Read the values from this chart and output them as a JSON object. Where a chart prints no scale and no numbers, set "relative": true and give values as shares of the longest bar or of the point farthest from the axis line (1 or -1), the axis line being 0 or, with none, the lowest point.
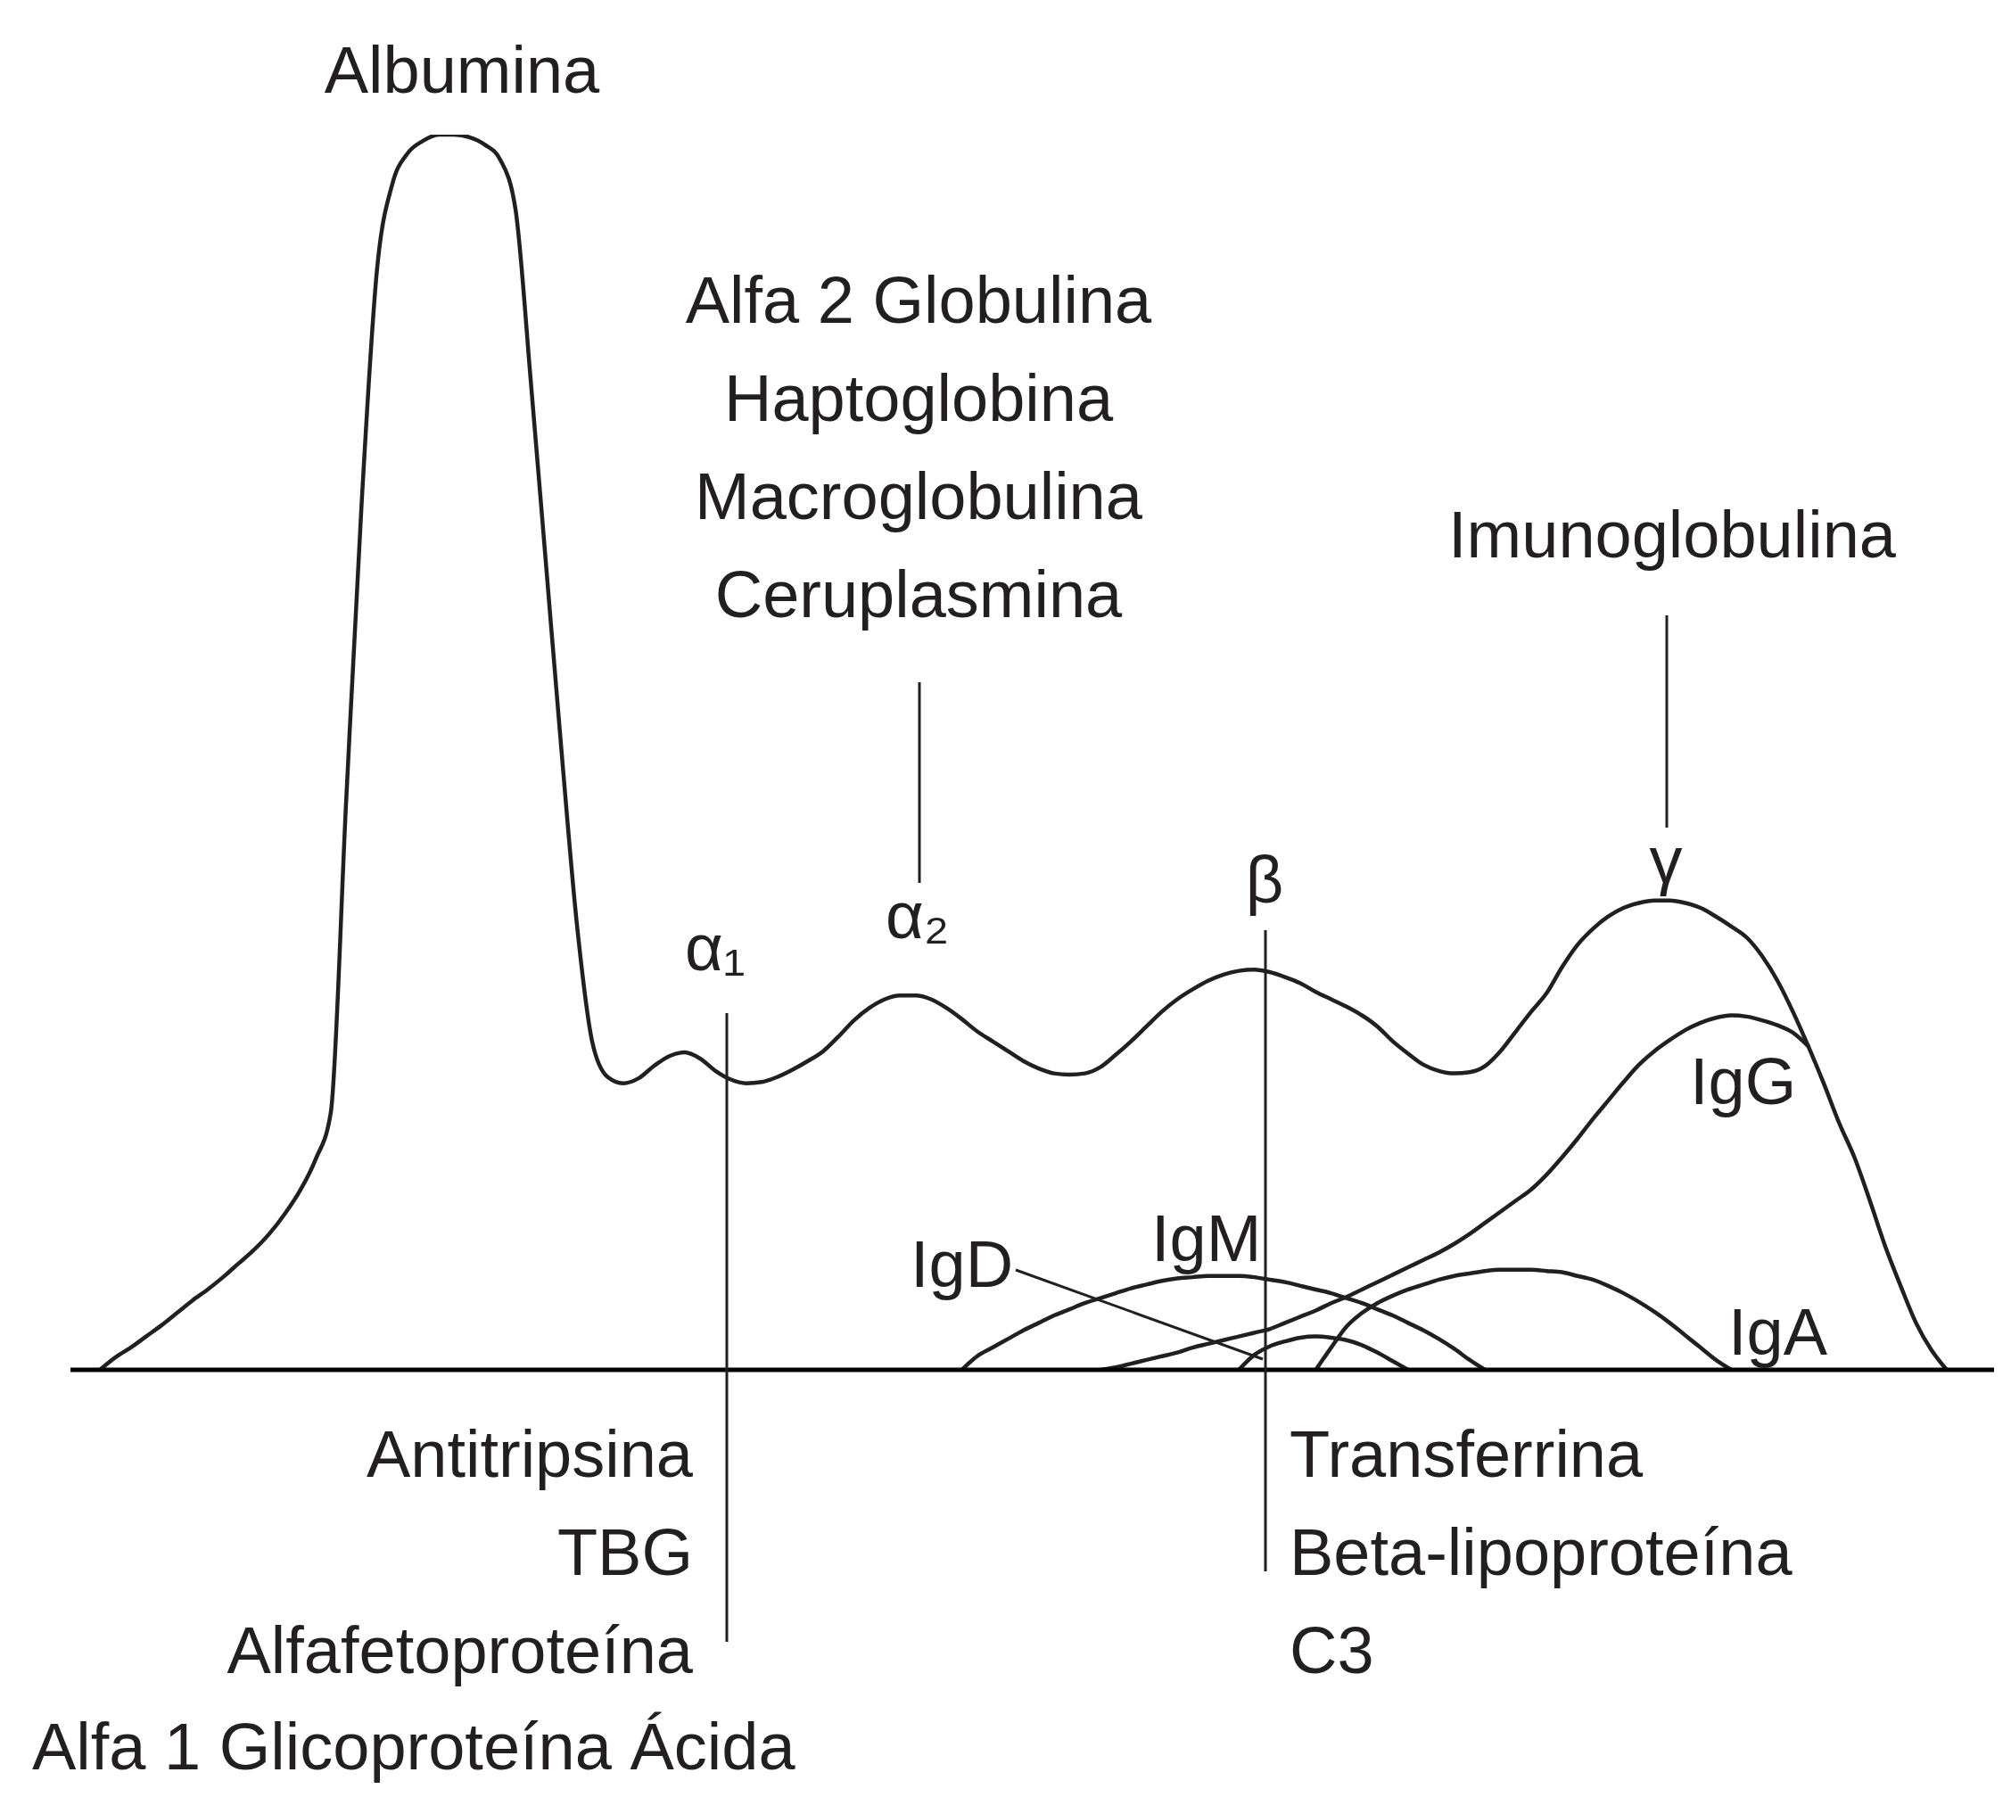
{
  "chart_data": {
    "type": "line",
    "relative": true,
    "categories": [
      null,
      null,
      null,
      null,
      null,
      null,
      null,
      null,
      null,
      null,
      null,
      null,
      null,
      null,
      null,
      null,
      null,
      null,
      null,
      null,
      null,
      null,
      null,
      null,
      null,
      null,
      null,
      null,
      null,
      null,
      null,
      null,
      null,
      null,
      null,
      null,
      null,
      null,
      null,
      null,
      null,
      null,
      null,
      null,
      null,
      null,
      null,
      null,
      null,
      null,
      null,
      null,
      null,
      null,
      null,
      null,
      null,
      null,
      null,
      null,
      null,
      null,
      null,
      null,
      null,
      null,
      null,
      null,
      null,
      null,
      null,
      null,
      null,
      null,
      null,
      null,
      null,
      null,
      null,
      null,
      null,
      null,
      null,
      null,
      null,
      null,
      null,
      null,
      null,
      null,
      null,
      null,
      null,
      null,
      null,
      null,
      null,
      null,
      null,
      null,
      null,
      null,
      null,
      null,
      null,
      null,
      null,
      null,
      null,
      null,
      null,
      null,
      null,
      null,
      null,
      null,
      null,
      null,
      null,
      null,
      null
    ],
    "series": [
      {
        "color": "#231f20",
        "values": [
          0,
          0.01,
          0.018,
          0.027,
          0.036,
          0.046,
          0.056,
          0.065,
          0.075,
          0.086,
          0.097,
          0.11,
          0.126,
          0.145,
          0.17,
          0.208,
          0.46,
          0.7,
          0.89,
          0.96,
          0.985,
          0.995,
          1,
          1,
          0.998,
          0.992,
          0.98,
          0.94,
          0.8,
          0.65,
          0.5,
          0.36,
          0.265,
          0.237,
          0.232,
          0.236,
          0.246,
          0.254,
          0.257,
          0.252,
          0.242,
          0.235,
          0.232,
          0.233,
          0.237,
          0.243,
          0.25,
          0.258,
          0.27,
          0.283,
          0.293,
          0.3,
          0.303,
          0.303,
          0.3,
          0.293,
          0.284,
          0.274,
          0.266,
          0.258,
          0.25,
          0.244,
          0.24,
          0.239,
          0.24,
          0.245,
          0.255,
          0.266,
          0.278,
          0.29,
          0.3,
          0.308,
          0.315,
          0.32,
          0.323,
          0.324,
          0.322,
          0.318,
          0.313,
          0.306,
          0.3,
          0.294,
          0.287,
          0.278,
          0.266,
          0.256,
          0.247,
          0.242,
          0.24,
          0.241,
          0.246,
          0.258,
          0.274,
          0.29,
          0.305,
          0.326,
          0.344,
          0.357,
          0.367,
          0.374,
          0.378,
          0.38,
          0.38,
          0.378,
          0.374,
          0.367,
          0.359,
          0.35,
          0.335,
          0.315,
          0.29,
          0.262,
          0.232,
          0.2,
          0.172,
          0.137,
          0.1,
          0.068,
          0.038,
          0.016,
          0
        ]
      },
      {
        "name": "IgG",
        "color": "#231f20",
        "values": [
          null,
          null,
          null,
          null,
          null,
          null,
          null,
          null,
          null,
          null,
          null,
          null,
          null,
          null,
          null,
          null,
          null,
          null,
          null,
          null,
          null,
          null,
          null,
          null,
          null,
          null,
          null,
          null,
          null,
          null,
          null,
          null,
          null,
          null,
          null,
          null,
          null,
          null,
          null,
          null,
          null,
          null,
          null,
          null,
          null,
          null,
          null,
          null,
          null,
          null,
          null,
          null,
          null,
          null,
          null,
          null,
          null,
          null,
          null,
          null,
          null,
          null,
          null,
          null,
          null,
          0,
          0.002,
          0.005,
          0.008,
          0.011,
          0.014,
          0.018,
          0.021,
          0.024,
          0.027,
          0.03,
          0.033,
          0.038,
          0.043,
          0.048,
          0.054,
          0.059,
          0.065,
          0.071,
          0.077,
          0.083,
          0.089,
          0.095,
          0.102,
          0.11,
          0.119,
          0.128,
          0.137,
          0.146,
          0.158,
          0.172,
          0.187,
          0.203,
          0.218,
          0.233,
          0.247,
          0.258,
          0.267,
          0.275,
          0.281,
          0.285,
          0.287,
          0.286,
          0.283,
          0.279,
          0.273,
          0.262,
          null,
          null,
          null,
          null,
          null,
          null,
          null,
          null,
          null
        ]
      },
      {
        "name": "IgA",
        "color": "#231f20",
        "values": [
          null,
          null,
          null,
          null,
          null,
          null,
          null,
          null,
          null,
          null,
          null,
          null,
          null,
          null,
          null,
          null,
          null,
          null,
          null,
          null,
          null,
          null,
          null,
          null,
          null,
          null,
          null,
          null,
          null,
          null,
          null,
          null,
          null,
          null,
          null,
          null,
          null,
          null,
          null,
          null,
          null,
          null,
          null,
          null,
          null,
          null,
          null,
          null,
          null,
          null,
          null,
          null,
          null,
          null,
          null,
          null,
          null,
          null,
          null,
          null,
          null,
          null,
          null,
          null,
          null,
          null,
          null,
          null,
          null,
          null,
          null,
          null,
          null,
          null,
          null,
          null,
          null,
          null,
          null,
          0,
          0.018,
          0.035,
          0.046,
          0.054,
          0.06,
          0.065,
          0.069,
          0.073,
          0.076,
          0.078,
          0.08,
          0.081,
          0.081,
          0.081,
          0.08,
          0.079,
          0.076,
          0.073,
          0.068,
          0.062,
          0.055,
          0.047,
          0.038,
          0.028,
          0.018,
          0.008,
          0,
          null,
          null,
          null,
          null,
          null,
          null,
          null,
          null,
          null,
          null,
          null,
          null,
          null,
          null
        ]
      },
      {
        "name": "IgM",
        "color": "#231f20",
        "values": [
          null,
          null,
          null,
          null,
          null,
          null,
          null,
          null,
          null,
          null,
          null,
          null,
          null,
          null,
          null,
          null,
          null,
          null,
          null,
          null,
          null,
          null,
          null,
          null,
          null,
          null,
          null,
          null,
          null,
          null,
          null,
          null,
          null,
          null,
          null,
          null,
          null,
          null,
          null,
          null,
          null,
          null,
          null,
          null,
          null,
          null,
          null,
          null,
          null,
          null,
          null,
          null,
          null,
          null,
          null,
          null,
          0,
          0.011,
          0.018,
          0.025,
          0.032,
          0.038,
          0.044,
          0.049,
          0.054,
          0.058,
          0.062,
          0.066,
          0.069,
          0.072,
          0.074,
          0.075,
          0.076,
          0.076,
          0.076,
          0.075,
          0.073,
          0.071,
          0.068,
          0.065,
          0.062,
          0.058,
          0.054,
          0.049,
          0.044,
          0.038,
          0.032,
          0.025,
          0.017,
          0.008,
          0,
          null,
          null,
          null,
          null,
          null,
          null,
          null,
          null,
          null,
          null,
          null,
          null,
          null,
          null,
          null,
          null,
          null,
          null,
          null,
          null,
          null,
          null,
          null,
          null,
          null,
          null,
          null,
          null,
          null,
          null
        ]
      },
      {
        "name": "IgD",
        "color": "#231f20",
        "values": [
          null,
          null,
          null,
          null,
          null,
          null,
          null,
          null,
          null,
          null,
          null,
          null,
          null,
          null,
          null,
          null,
          null,
          null,
          null,
          null,
          null,
          null,
          null,
          null,
          null,
          null,
          null,
          null,
          null,
          null,
          null,
          null,
          null,
          null,
          null,
          null,
          null,
          null,
          null,
          null,
          null,
          null,
          null,
          null,
          null,
          null,
          null,
          null,
          null,
          null,
          null,
          null,
          null,
          null,
          null,
          null,
          null,
          null,
          null,
          null,
          null,
          null,
          null,
          null,
          null,
          null,
          null,
          null,
          null,
          null,
          null,
          null,
          null,
          null,
          0,
          0.012,
          0.019,
          0.023,
          0.026,
          0.027,
          0.026,
          0.024,
          0.02,
          0.014,
          0.007,
          0,
          null,
          null,
          null,
          null,
          null,
          null,
          null,
          null,
          null,
          null,
          null,
          null,
          null,
          null,
          null,
          null,
          null,
          null,
          null,
          null,
          null,
          null,
          null,
          null,
          null,
          null,
          null,
          null,
          null,
          null,
          null,
          null,
          null,
          null,
          null
        ]
      }
    ],
    "annotations": [
      "Albumina",
      "Alfa 2 Globulina",
      "Haptoglobina",
      "Macroglobulina",
      "Ceruplasmina",
      "Imunoglobulina",
      "α₁",
      "α₂",
      "β",
      "γ",
      "Antitripsina",
      "TBG",
      "Alfafetoproteína",
      "Alfa 1 Glicoproteína Ácida",
      "Transferrina",
      "Beta-lipoproteína",
      "C3"
    ]
  }
}
